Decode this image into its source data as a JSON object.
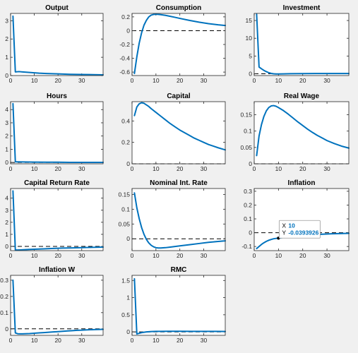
{
  "figure": {
    "background": "#f0f0f0",
    "line_color": "#0072bd",
    "axes_color": "#262626"
  },
  "chart_data": [
    {
      "type": "line",
      "title": "Output",
      "xlim": [
        0,
        39
      ],
      "ylim": [
        0,
        3.4
      ],
      "xticks": [
        0,
        10,
        20,
        30
      ],
      "yticks": [
        0,
        1,
        2,
        3
      ],
      "zero_line": false,
      "series": [
        {
          "x": [
            1,
            2,
            3,
            4,
            5,
            6,
            7,
            8,
            10,
            12,
            15,
            20,
            25,
            30,
            35,
            39
          ],
          "values": [
            3.25,
            0.2,
            0.21,
            0.21,
            0.2,
            0.19,
            0.18,
            0.17,
            0.15,
            0.13,
            0.11,
            0.09,
            0.07,
            0.06,
            0.05,
            0.04
          ]
        }
      ]
    },
    {
      "type": "line",
      "title": "Consumption",
      "xlim": [
        0,
        39
      ],
      "ylim": [
        -0.65,
        0.25
      ],
      "xticks": [
        0,
        10,
        20,
        30
      ],
      "yticks": [
        -0.6,
        -0.4,
        -0.2,
        0,
        0.2
      ],
      "zero_line": true,
      "series": [
        {
          "x": [
            1,
            2,
            3,
            4,
            5,
            6,
            7,
            8,
            9,
            10,
            11,
            12,
            14,
            16,
            18,
            20,
            24,
            28,
            32,
            36,
            39
          ],
          "values": [
            -0.62,
            -0.38,
            -0.18,
            -0.03,
            0.08,
            0.15,
            0.2,
            0.225,
            0.235,
            0.238,
            0.236,
            0.232,
            0.222,
            0.208,
            0.193,
            0.178,
            0.149,
            0.123,
            0.102,
            0.085,
            0.075
          ]
        }
      ]
    },
    {
      "type": "line",
      "title": "Investment",
      "xlim": [
        0,
        39
      ],
      "ylim": [
        -0.5,
        17
      ],
      "xticks": [
        0,
        10,
        20,
        30
      ],
      "yticks": [
        0,
        5,
        10,
        15
      ],
      "zero_line": true,
      "series": [
        {
          "x": [
            1,
            2,
            3,
            4,
            5,
            6,
            7,
            8,
            9,
            10,
            12,
            15,
            20,
            25,
            30,
            35,
            39
          ],
          "values": [
            16.8,
            1.9,
            1.4,
            0.95,
            0.6,
            0.3,
            0.1,
            0.0,
            -0.05,
            -0.05,
            -0.02,
            0.02,
            0.05,
            0.06,
            0.07,
            0.07,
            0.07
          ]
        }
      ]
    },
    {
      "type": "line",
      "title": "Hours",
      "xlim": [
        0,
        39
      ],
      "ylim": [
        -0.1,
        4.6
      ],
      "xticks": [
        0,
        10,
        20,
        30
      ],
      "yticks": [
        0,
        1,
        2,
        3,
        4
      ],
      "zero_line": true,
      "series": [
        {
          "x": [
            1,
            2,
            3,
            5,
            10,
            15,
            20,
            25,
            30,
            35,
            39
          ],
          "values": [
            4.45,
            0.05,
            0.05,
            0.04,
            0.03,
            0.02,
            0.02,
            0.01,
            0.01,
            0.01,
            0.01
          ]
        }
      ]
    },
    {
      "type": "line",
      "title": "Capital",
      "xlim": [
        0,
        39
      ],
      "ylim": [
        0,
        0.58
      ],
      "xticks": [
        0,
        10,
        20,
        30
      ],
      "yticks": [
        0,
        0.2,
        0.4
      ],
      "zero_line": true,
      "series": [
        {
          "x": [
            1,
            2,
            3,
            4,
            5,
            6,
            7,
            8,
            10,
            12,
            14,
            16,
            18,
            20,
            22,
            24,
            26,
            28,
            30,
            32,
            34,
            36,
            39
          ],
          "values": [
            0.45,
            0.53,
            0.56,
            0.57,
            0.565,
            0.55,
            0.535,
            0.515,
            0.48,
            0.445,
            0.41,
            0.375,
            0.345,
            0.315,
            0.29,
            0.265,
            0.24,
            0.22,
            0.2,
            0.18,
            0.165,
            0.15,
            0.13
          ]
        }
      ]
    },
    {
      "type": "line",
      "title": "Real Wage",
      "xlim": [
        0,
        39
      ],
      "ylim": [
        0,
        0.19
      ],
      "xticks": [
        0,
        10,
        20,
        30
      ],
      "yticks": [
        0,
        0.05,
        0.1,
        0.15
      ],
      "zero_line": true,
      "series": [
        {
          "x": [
            1,
            2,
            3,
            4,
            5,
            6,
            7,
            8,
            9,
            10,
            12,
            14,
            16,
            18,
            20,
            22,
            24,
            26,
            28,
            30,
            33,
            36,
            39
          ],
          "values": [
            0.025,
            0.085,
            0.12,
            0.145,
            0.162,
            0.172,
            0.177,
            0.178,
            0.176,
            0.172,
            0.163,
            0.152,
            0.14,
            0.128,
            0.117,
            0.106,
            0.096,
            0.087,
            0.079,
            0.071,
            0.062,
            0.054,
            0.048
          ]
        }
      ]
    },
    {
      "type": "line",
      "title": "Capital Return Rate",
      "xlim": [
        0,
        39
      ],
      "ylim": [
        -0.35,
        4.8
      ],
      "xticks": [
        0,
        10,
        20,
        30
      ],
      "yticks": [
        0,
        1,
        2,
        3,
        4
      ],
      "zero_line": true,
      "series": [
        {
          "x": [
            1,
            2,
            3,
            4,
            6,
            8,
            10,
            14,
            18,
            22,
            26,
            30,
            34,
            39
          ],
          "values": [
            4.6,
            -0.3,
            -0.3,
            -0.29,
            -0.27,
            -0.25,
            -0.23,
            -0.2,
            -0.17,
            -0.14,
            -0.12,
            -0.1,
            -0.08,
            -0.06
          ]
        }
      ]
    },
    {
      "type": "line",
      "title": "Nominal Int. Rate",
      "xlim": [
        0,
        39
      ],
      "ylim": [
        -0.04,
        0.17
      ],
      "xticks": [
        0,
        10,
        20,
        30
      ],
      "yticks": [
        0,
        0.05,
        0.1,
        0.15
      ],
      "zero_line": true,
      "series": [
        {
          "x": [
            1,
            2,
            3,
            4,
            5,
            6,
            7,
            8,
            9,
            10,
            11,
            12,
            14,
            16,
            18,
            20,
            24,
            28,
            32,
            36,
            39
          ],
          "values": [
            0.155,
            0.105,
            0.068,
            0.038,
            0.015,
            -0.002,
            -0.014,
            -0.022,
            -0.027,
            -0.03,
            -0.031,
            -0.031,
            -0.03,
            -0.028,
            -0.026,
            -0.024,
            -0.02,
            -0.016,
            -0.012,
            -0.009,
            -0.007
          ]
        }
      ]
    },
    {
      "type": "line",
      "title": "Inflation",
      "xlim": [
        0,
        39
      ],
      "ylim": [
        -0.13,
        0.32
      ],
      "xticks": [
        0,
        10,
        20,
        30
      ],
      "yticks": [
        -0.1,
        0,
        0.1,
        0.2,
        0.3
      ],
      "zero_line": true,
      "series": [
        {
          "x": [
            1,
            2,
            3,
            4,
            5,
            6,
            7,
            8,
            9,
            10,
            12,
            14,
            16,
            18,
            20,
            24,
            28,
            32,
            36,
            39
          ],
          "values": [
            -0.115,
            -0.1,
            -0.085,
            -0.073,
            -0.063,
            -0.055,
            -0.049,
            -0.044,
            -0.0415,
            -0.0393926,
            -0.035,
            -0.031,
            -0.027,
            -0.023,
            -0.02,
            -0.015,
            -0.011,
            -0.008,
            -0.006,
            -0.005
          ]
        }
      ],
      "datatip": {
        "x": 10,
        "y": -0.0393926,
        "x_label": "X",
        "y_label": "Y",
        "x_text": "10",
        "y_text": "-0.0393926"
      }
    },
    {
      "type": "line",
      "title": "Inflation W",
      "xlim": [
        0,
        39
      ],
      "ylim": [
        -0.04,
        0.33
      ],
      "xticks": [
        0,
        10,
        20,
        30
      ],
      "yticks": [
        0,
        0.1,
        0.2,
        0.3
      ],
      "zero_line": true,
      "series": [
        {
          "x": [
            1,
            2,
            3,
            4,
            5,
            6,
            8,
            10,
            12,
            14,
            16,
            18,
            20,
            22,
            24,
            26,
            28,
            30,
            32,
            34,
            36,
            39
          ],
          "values": [
            0.3,
            -0.025,
            -0.03,
            -0.031,
            -0.031,
            -0.03,
            -0.029,
            -0.027,
            -0.025,
            -0.023,
            -0.021,
            -0.019,
            -0.017,
            -0.015,
            -0.013,
            -0.011,
            -0.009,
            -0.008,
            -0.006,
            -0.005,
            -0.004,
            -0.003
          ]
        }
      ]
    },
    {
      "type": "line",
      "title": "RMC",
      "xlim": [
        0,
        39
      ],
      "ylim": [
        -0.1,
        1.65
      ],
      "xticks": [
        0,
        10,
        20,
        30
      ],
      "yticks": [
        0,
        0.5,
        1,
        1.5
      ],
      "zero_line": true,
      "series": [
        {
          "x": [
            1,
            2,
            3,
            4,
            5,
            6,
            8,
            10,
            12,
            15,
            20,
            25,
            30,
            35,
            39
          ],
          "values": [
            1.55,
            -0.06,
            -0.04,
            -0.02,
            -0.01,
            0.0,
            0.01,
            0.015,
            0.017,
            0.018,
            0.018,
            0.017,
            0.016,
            0.015,
            0.014
          ]
        }
      ]
    }
  ]
}
